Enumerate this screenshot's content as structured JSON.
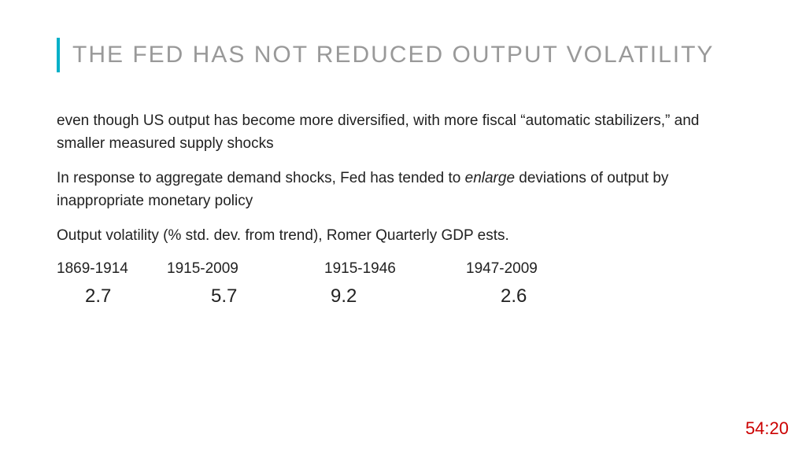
{
  "slide": {
    "title": "THE FED HAS NOT REDUCED OUTPUT VOLATILITY",
    "accent_color": "#00b0c8",
    "title_color": "#999999",
    "paragraph1": "even though US output has become more diversified, with more fiscal “automatic stabilizers,” and smaller measured supply shocks",
    "paragraph2_prefix": "In response to aggregate demand shocks, Fed has tended to ",
    "paragraph2_italic": "enlarge",
    "paragraph2_suffix": " deviations of output by inappropriate monetary policy",
    "paragraph3": "Output volatility  (% std. dev. from trend), Romer Quarterly GDP ests.",
    "table": {
      "headers": [
        "1869-1914",
        "1915-2009",
        "1915-1946",
        "1947-2009"
      ],
      "values": [
        "2.7",
        "5.7",
        "9.2",
        "2.6"
      ]
    }
  },
  "timestamp": "54:20",
  "timestamp_color": "#cc0000"
}
